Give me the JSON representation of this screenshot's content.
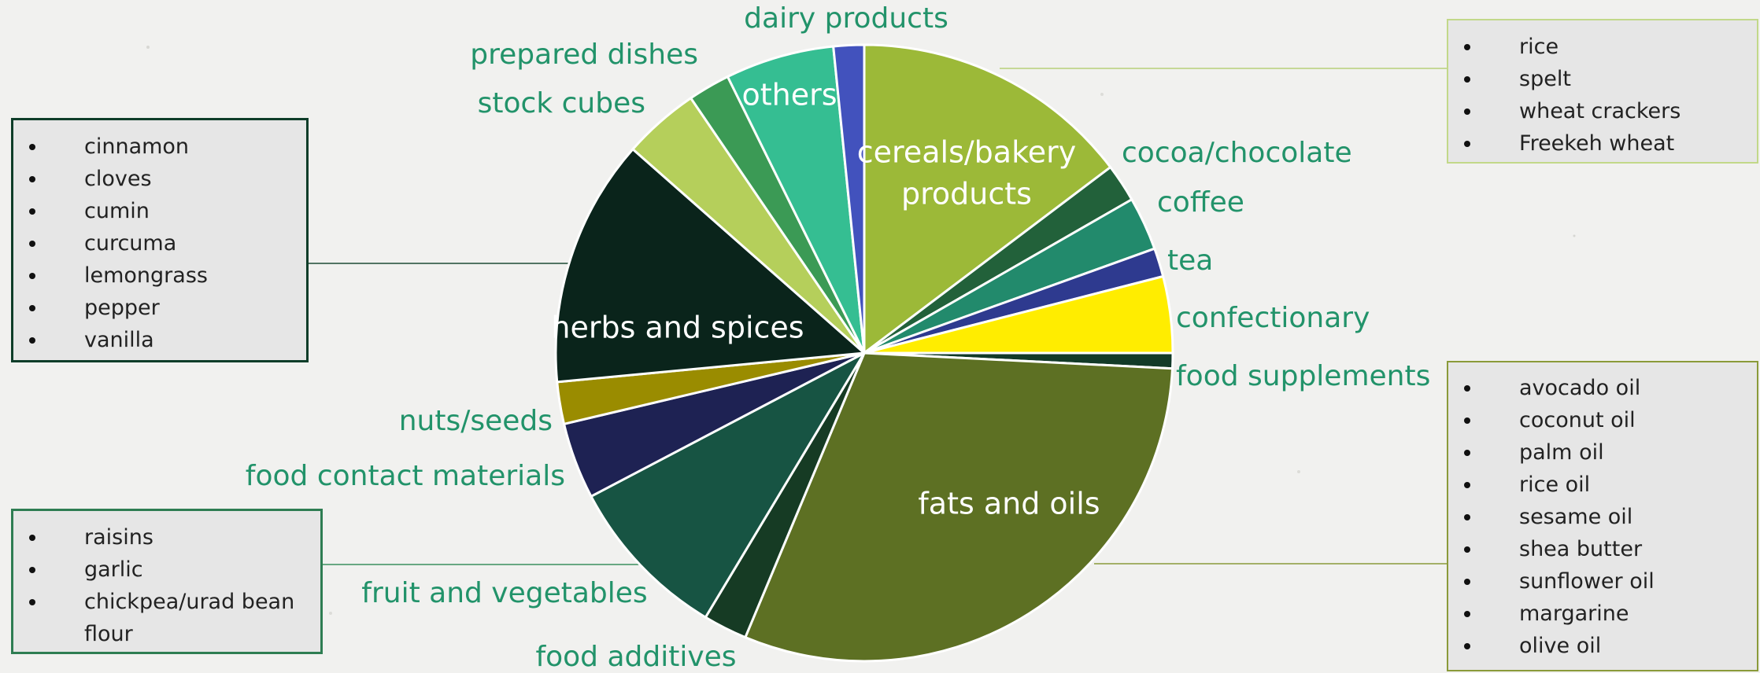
{
  "chart_data": {
    "type": "pie",
    "title": "",
    "start_angle_deg": 0,
    "direction": "clockwise",
    "slices": [
      {
        "label": "cereals/bakery products",
        "value": 14.7,
        "color": "#9cb938",
        "label_color": "#ffffff",
        "label_inside": true
      },
      {
        "label": "cocoa/chocolate",
        "value": 2.0,
        "color": "#22613a",
        "label_color": "#22936a"
      },
      {
        "label": "coffee",
        "value": 2.8,
        "color": "#228a6c",
        "label_color": "#22936a"
      },
      {
        "label": "tea",
        "value": 1.5,
        "color": "#2e3a8f",
        "label_color": "#22936a"
      },
      {
        "label": "confectionary",
        "value": 4.0,
        "color": "#ffed00",
        "label_color": "#22936a"
      },
      {
        "label": "food supplements",
        "value": 0.8,
        "color": "#123a28",
        "label_color": "#22936a"
      },
      {
        "label": "fats and oils",
        "value": 30.5,
        "color": "#5d7023",
        "label_color": "#ffffff",
        "label_inside": true
      },
      {
        "label": "food additives",
        "value": 2.3,
        "color": "#163b24",
        "label_color": "#22936a"
      },
      {
        "label": "fruit and vegetables",
        "value": 8.7,
        "color": "#175443",
        "label_color": "#22936a"
      },
      {
        "label": "food contact materials",
        "value": 4.0,
        "color": "#1e2253",
        "label_color": "#22936a"
      },
      {
        "label": "nuts/seeds",
        "value": 2.2,
        "color": "#9a8c00",
        "label_color": "#22936a"
      },
      {
        "label": "herbs and spices",
        "value": 13.0,
        "color": "#0a241b",
        "label_color": "#ffffff",
        "label_inside": true
      },
      {
        "label": "stock cubes",
        "value": 4.0,
        "color": "#b5cf5b",
        "label_color": "#22936a"
      },
      {
        "label": "prepared dishes",
        "value": 2.2,
        "color": "#3b9a55",
        "label_color": "#22936a"
      },
      {
        "label": "others",
        "value": 5.7,
        "color": "#35be92",
        "label_color": "#ffffff",
        "label_inside": true
      },
      {
        "label": "dairy products",
        "value": 1.6,
        "color": "#4252bd",
        "label_color": "#22936a"
      }
    ]
  },
  "callouts": {
    "cereals": {
      "items": [
        "rice",
        "spelt",
        "wheat crackers",
        "Freekeh wheat"
      ]
    },
    "spices": {
      "items": [
        "cinnamon",
        "cloves",
        "cumin",
        "curcuma",
        "lemongrass",
        "pepper",
        "vanilla"
      ]
    },
    "fruit": {
      "items": [
        "raisins",
        "garlic",
        "chickpea/urad bean",
        "flour"
      ]
    },
    "fats": {
      "items": [
        "avocado oil",
        "coconut oil",
        "palm oil",
        "rice oil",
        "sesame oil",
        "shea butter",
        "sunflower oil",
        "margarine",
        "olive oil"
      ]
    }
  }
}
